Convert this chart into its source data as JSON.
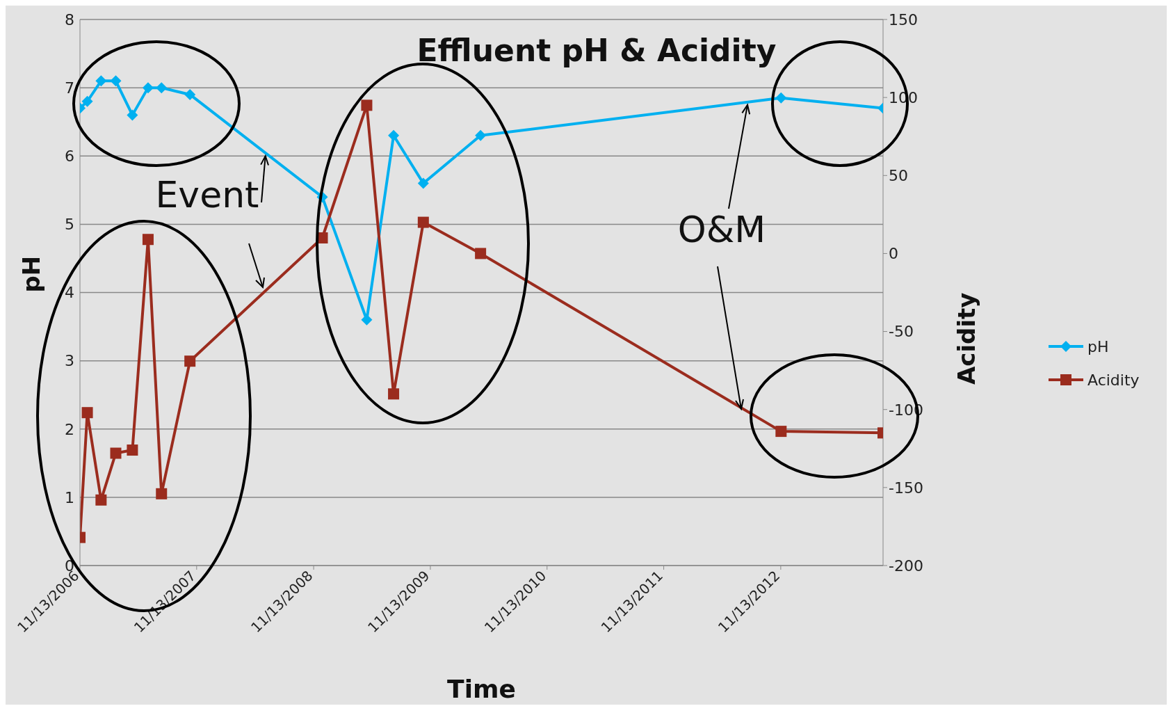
{
  "chart_data": {
    "type": "line",
    "title": "Effluent pH & Acidity",
    "xlabel": "Time",
    "ylabel": "pH",
    "y2label": "Acidity",
    "annotations": [
      {
        "text": "Event",
        "x": "2008-06-15",
        "y": 6.0
      },
      {
        "text": "O&M",
        "x": "2012-08-01",
        "y": 6.75
      }
    ],
    "x": [
      "2006-11-13",
      "2006-12-06",
      "2007-01-18",
      "2007-03-05",
      "2007-04-26",
      "2007-06-14",
      "2007-07-26",
      "2007-10-23",
      "2008-12-10",
      "2009-04-28",
      "2009-07-21",
      "2009-10-22",
      "2010-04-19",
      "2012-11-14",
      "2013-09-29"
    ],
    "series": [
      {
        "name": "pH",
        "color": "#00b0f0",
        "marker": "diamond",
        "values": [
          6.7,
          6.8,
          7.1,
          7.1,
          6.6,
          7.0,
          7.0,
          6.9,
          5.4,
          3.6,
          6.3,
          5.6,
          6.3,
          6.85,
          6.7
        ]
      },
      {
        "name": "Acidity",
        "color": "#9b2c1e",
        "marker": "square",
        "axis": "y2",
        "values": [
          -182,
          -102,
          -158,
          -128,
          -126,
          9,
          -154,
          -69,
          10,
          95,
          -90,
          20,
          0,
          -114,
          -115
        ]
      }
    ],
    "xlim": [
      "2006-11-13",
      "2013-09-29"
    ],
    "xticks": [
      {
        "value": "2006-11-13",
        "label": "11/13/2006"
      },
      {
        "value": "2007-11-13",
        "label": "11/13/2007"
      },
      {
        "value": "2008-11-13",
        "label": "11/13/2008"
      },
      {
        "value": "2009-11-13",
        "label": "11/13/2009"
      },
      {
        "value": "2010-11-13",
        "label": "11/13/2010"
      },
      {
        "value": "2011-11-13",
        "label": "11/13/2011"
      },
      {
        "value": "2012-11-13",
        "label": "11/13/2012"
      }
    ],
    "ylim": [
      0,
      8
    ],
    "yticks": [
      0,
      1,
      2,
      3,
      4,
      5,
      6,
      7,
      8
    ],
    "y2lim": [
      -200,
      150
    ],
    "y2ticks": [
      -200,
      -150,
      -100,
      -50,
      0,
      50,
      100,
      150
    ],
    "grid": "y",
    "legend": "right",
    "line_style": "solid"
  }
}
